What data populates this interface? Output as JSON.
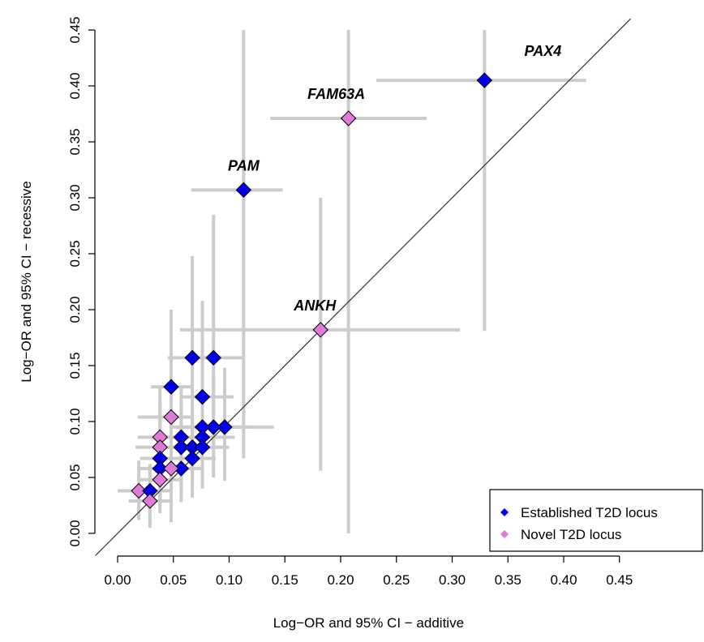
{
  "chart_data": {
    "type": "scatter",
    "xlabel": "Log−OR and 95% CI − additive",
    "ylabel": "Log−OR and 95% CI − recessive",
    "xlim": [
      0,
      0.45
    ],
    "ylim": [
      0,
      0.45
    ],
    "x_ticks": [
      "0.00",
      "0.05",
      "0.10",
      "0.15",
      "0.20",
      "0.25",
      "0.30",
      "0.35",
      "0.40",
      "0.45"
    ],
    "y_ticks": [
      "0.00",
      "0.05",
      "0.10",
      "0.15",
      "0.20",
      "0.25",
      "0.30",
      "0.35",
      "0.40",
      "0.45"
    ],
    "diagonal_line": "y = x",
    "grid": false,
    "legend_position": "bottom-right",
    "legend": [
      {
        "label": "Established T2D locus",
        "color": "#0000ee"
      },
      {
        "label": "Novel T2D locus",
        "color": "#e07ad8"
      }
    ],
    "point_colors": {
      "established": "#0000ee",
      "novel": "#e07ad8"
    },
    "errorbar_color": "#cccccc",
    "points": [
      {
        "label": "PAX4",
        "type": "established",
        "x": 0.329,
        "y": 0.405,
        "xci": [
          0.232,
          0.42
        ],
        "yci": [
          0.181,
          0.45
        ]
      },
      {
        "label": "FAM63A",
        "type": "novel",
        "x": 0.207,
        "y": 0.371,
        "xci": [
          0.137,
          0.277
        ],
        "yci": [
          0.0,
          0.45
        ]
      },
      {
        "label": "PAM",
        "type": "established",
        "x": 0.113,
        "y": 0.307,
        "xci": [
          0.066,
          0.148
        ],
        "yci": [
          0.067,
          0.45
        ]
      },
      {
        "label": "ANKH",
        "type": "novel",
        "x": 0.182,
        "y": 0.182,
        "xci": [
          0.056,
          0.307
        ],
        "yci": [
          0.056,
          0.3
        ]
      },
      {
        "label": "",
        "type": "established",
        "x": 0.067,
        "y": 0.157,
        "xci": [
          0.045,
          0.093
        ],
        "yci": [
          0.065,
          0.248
        ]
      },
      {
        "label": "",
        "type": "established",
        "x": 0.086,
        "y": 0.157,
        "xci": [
          0.064,
          0.112
        ],
        "yci": [
          0.076,
          0.285
        ]
      },
      {
        "label": "",
        "type": "established",
        "x": 0.048,
        "y": 0.131,
        "xci": [
          0.03,
          0.068
        ],
        "yci": [
          0.058,
          0.2
        ]
      },
      {
        "label": "",
        "type": "established",
        "x": 0.076,
        "y": 0.122,
        "xci": [
          0.058,
          0.104
        ],
        "yci": [
          0.052,
          0.208
        ]
      },
      {
        "label": "",
        "type": "novel",
        "x": 0.048,
        "y": 0.104,
        "xci": [
          0.018,
          0.068
        ],
        "yci": [
          0.04,
          0.197
        ]
      },
      {
        "label": "",
        "type": "established",
        "x": 0.096,
        "y": 0.095,
        "xci": [
          0.058,
          0.14
        ],
        "yci": [
          0.047,
          0.148
        ]
      },
      {
        "label": "",
        "type": "established",
        "x": 0.086,
        "y": 0.095,
        "xci": [
          0.053,
          0.118
        ],
        "yci": [
          0.05,
          0.14
        ]
      },
      {
        "label": "",
        "type": "established",
        "x": 0.076,
        "y": 0.095,
        "xci": [
          0.047,
          0.108
        ],
        "yci": [
          0.048,
          0.138
        ]
      },
      {
        "label": "",
        "type": "established",
        "x": 0.057,
        "y": 0.086,
        "xci": [
          0.036,
          0.08
        ],
        "yci": [
          0.045,
          0.13
        ]
      },
      {
        "label": "",
        "type": "novel",
        "x": 0.038,
        "y": 0.086,
        "xci": [
          0.018,
          0.058
        ],
        "yci": [
          0.04,
          0.132
        ]
      },
      {
        "label": "",
        "type": "established",
        "x": 0.076,
        "y": 0.086,
        "xci": [
          0.048,
          0.105
        ],
        "yci": [
          0.045,
          0.128
        ]
      },
      {
        "label": "",
        "type": "established",
        "x": 0.057,
        "y": 0.077,
        "xci": [
          0.035,
          0.078
        ],
        "yci": [
          0.04,
          0.118
        ]
      },
      {
        "label": "",
        "type": "established",
        "x": 0.067,
        "y": 0.077,
        "xci": [
          0.045,
          0.09
        ],
        "yci": [
          0.042,
          0.115
        ]
      },
      {
        "label": "",
        "type": "established",
        "x": 0.076,
        "y": 0.077,
        "xci": [
          0.052,
          0.1
        ],
        "yci": [
          0.04,
          0.112
        ]
      },
      {
        "label": "",
        "type": "novel",
        "x": 0.038,
        "y": 0.077,
        "xci": [
          0.016,
          0.058
        ],
        "yci": [
          0.035,
          0.12
        ]
      },
      {
        "label": "",
        "type": "established",
        "x": 0.067,
        "y": 0.067,
        "xci": [
          0.045,
          0.088
        ],
        "yci": [
          0.032,
          0.103
        ]
      },
      {
        "label": "",
        "type": "established",
        "x": 0.038,
        "y": 0.067,
        "xci": [
          0.02,
          0.057
        ],
        "yci": [
          0.03,
          0.104
        ]
      },
      {
        "label": "",
        "type": "established",
        "x": 0.057,
        "y": 0.058,
        "xci": [
          0.035,
          0.077
        ],
        "yci": [
          0.028,
          0.09
        ]
      },
      {
        "label": "",
        "type": "established",
        "x": 0.038,
        "y": 0.058,
        "xci": [
          0.018,
          0.058
        ],
        "yci": [
          0.025,
          0.09
        ]
      },
      {
        "label": "",
        "type": "novel",
        "x": 0.048,
        "y": 0.058,
        "xci": [
          0.028,
          0.068
        ],
        "yci": [
          0.01,
          0.1
        ]
      },
      {
        "label": "",
        "type": "novel",
        "x": 0.038,
        "y": 0.048,
        "xci": [
          0.018,
          0.058
        ],
        "yci": [
          0.018,
          0.08
        ]
      },
      {
        "label": "",
        "type": "novel",
        "x": 0.019,
        "y": 0.038,
        "xci": [
          0.0,
          0.038
        ],
        "yci": [
          0.012,
          0.065
        ]
      },
      {
        "label": "",
        "type": "established",
        "x": 0.029,
        "y": 0.038,
        "xci": [
          0.01,
          0.048
        ],
        "yci": [
          0.012,
          0.062
        ]
      },
      {
        "label": "",
        "type": "novel",
        "x": 0.029,
        "y": 0.029,
        "xci": [
          0.01,
          0.048
        ],
        "yci": [
          0.005,
          0.055
        ]
      }
    ]
  }
}
